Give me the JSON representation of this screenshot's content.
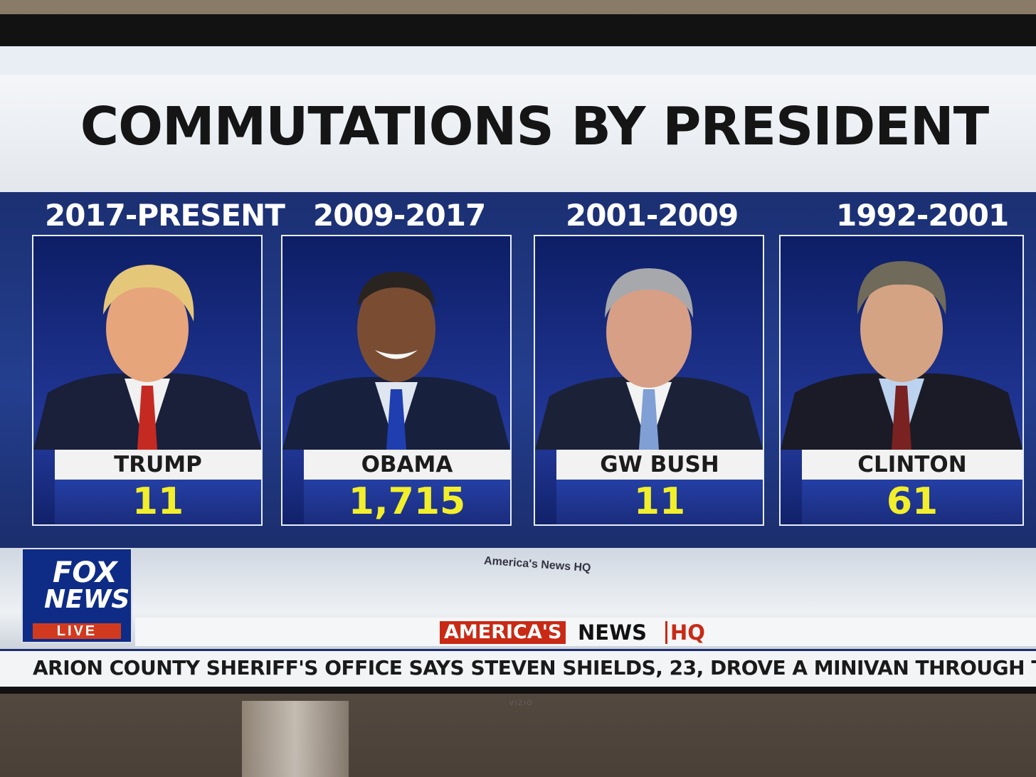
{
  "title": "COMMUTATIONS BY PRESIDENT",
  "presidents": [
    {
      "years": "2017-PRESENT",
      "name": "TRUMP",
      "count": "11",
      "skin": "#e7a57c",
      "hair": "#e5c77a",
      "tie": "#c52a22"
    },
    {
      "years": "2009-2017",
      "name": "OBAMA",
      "count": "1,715",
      "skin": "#7a4d33",
      "hair": "#2a2420",
      "tie": "#1f3fb0"
    },
    {
      "years": "2001-2009",
      "name": "GW BUSH",
      "count": "11",
      "skin": "#d79f86",
      "hair": "#a7a8ac",
      "tie": "#7f9fd5"
    },
    {
      "years": "1992-2001",
      "name": "CLINTON",
      "count": "61",
      "skin": "#d4a383",
      "hair": "#6f6a5a",
      "tie": "#7a2221"
    }
  ],
  "stage_text": "America's News HQ",
  "logo": {
    "fox": "FOX",
    "news": "NEWS",
    "live": "LIVE"
  },
  "show": {
    "part1": "AMERICA'S",
    "part2": "NEWS",
    "part3": "HQ"
  },
  "ticker": "ARION COUNTY SHERIFF'S OFFICE SAYS STEVEN SHIELDS, 23, DROVE A MINIVAN THROUGH THE FRONT DO",
  "brand": "VIZIO"
}
